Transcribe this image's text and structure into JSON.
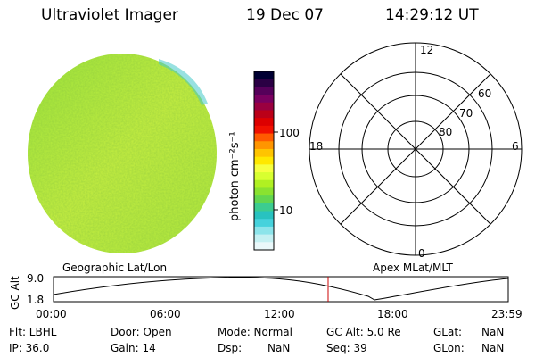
{
  "header": {
    "title": "Ultraviolet Imager",
    "date": "19 Dec 07",
    "time": "14:29:12 UT"
  },
  "colorbar": {
    "unit_label": "photon cm⁻²s⁻¹",
    "ticks": [
      "100",
      "10"
    ],
    "colors": [
      "#000033",
      "#2a0044",
      "#55005a",
      "#7a0060",
      "#9a0040",
      "#bb0018",
      "#dd0000",
      "#f01000",
      "#ff5a00",
      "#ff9500",
      "#ffc400",
      "#ffe800",
      "#f6ff40",
      "#d8ff30",
      "#b0f022",
      "#8ae230",
      "#62d650",
      "#3ccc90",
      "#28c2c0",
      "#46d2dc",
      "#8ce4ea",
      "#c4f0f2",
      "#eaf8fa"
    ]
  },
  "polar": {
    "mlt_labels": [
      "12",
      "6",
      "0",
      "18"
    ],
    "lat_labels": [
      "60",
      "70",
      "80"
    ]
  },
  "timeline": {
    "left_label": "Geographic Lat/Lon",
    "right_label": "Apex MLat/MLT",
    "axis_label": "GC Alt",
    "y_ticks": [
      "9.0",
      "1.8"
    ],
    "time_ticks": [
      "00:00",
      "06:00",
      "12:00",
      "18:00",
      "23:59"
    ],
    "marker_time": "14:29",
    "marker_color": "#cc0000"
  },
  "status": {
    "flt": "Flt: LBHL",
    "ip": "IP: 36.0",
    "door": "Door: Open",
    "gain": "Gain: 14",
    "mode": "Mode: Normal",
    "dsp_label": "Dsp:",
    "dsp_value": "NaN",
    "gcalt": "GC Alt: 5.0 Re",
    "seq": "Seq: 39",
    "glat_label": "GLat:",
    "glat_value": "NaN",
    "glon_label": "GLon:",
    "glon_value": "NaN"
  }
}
